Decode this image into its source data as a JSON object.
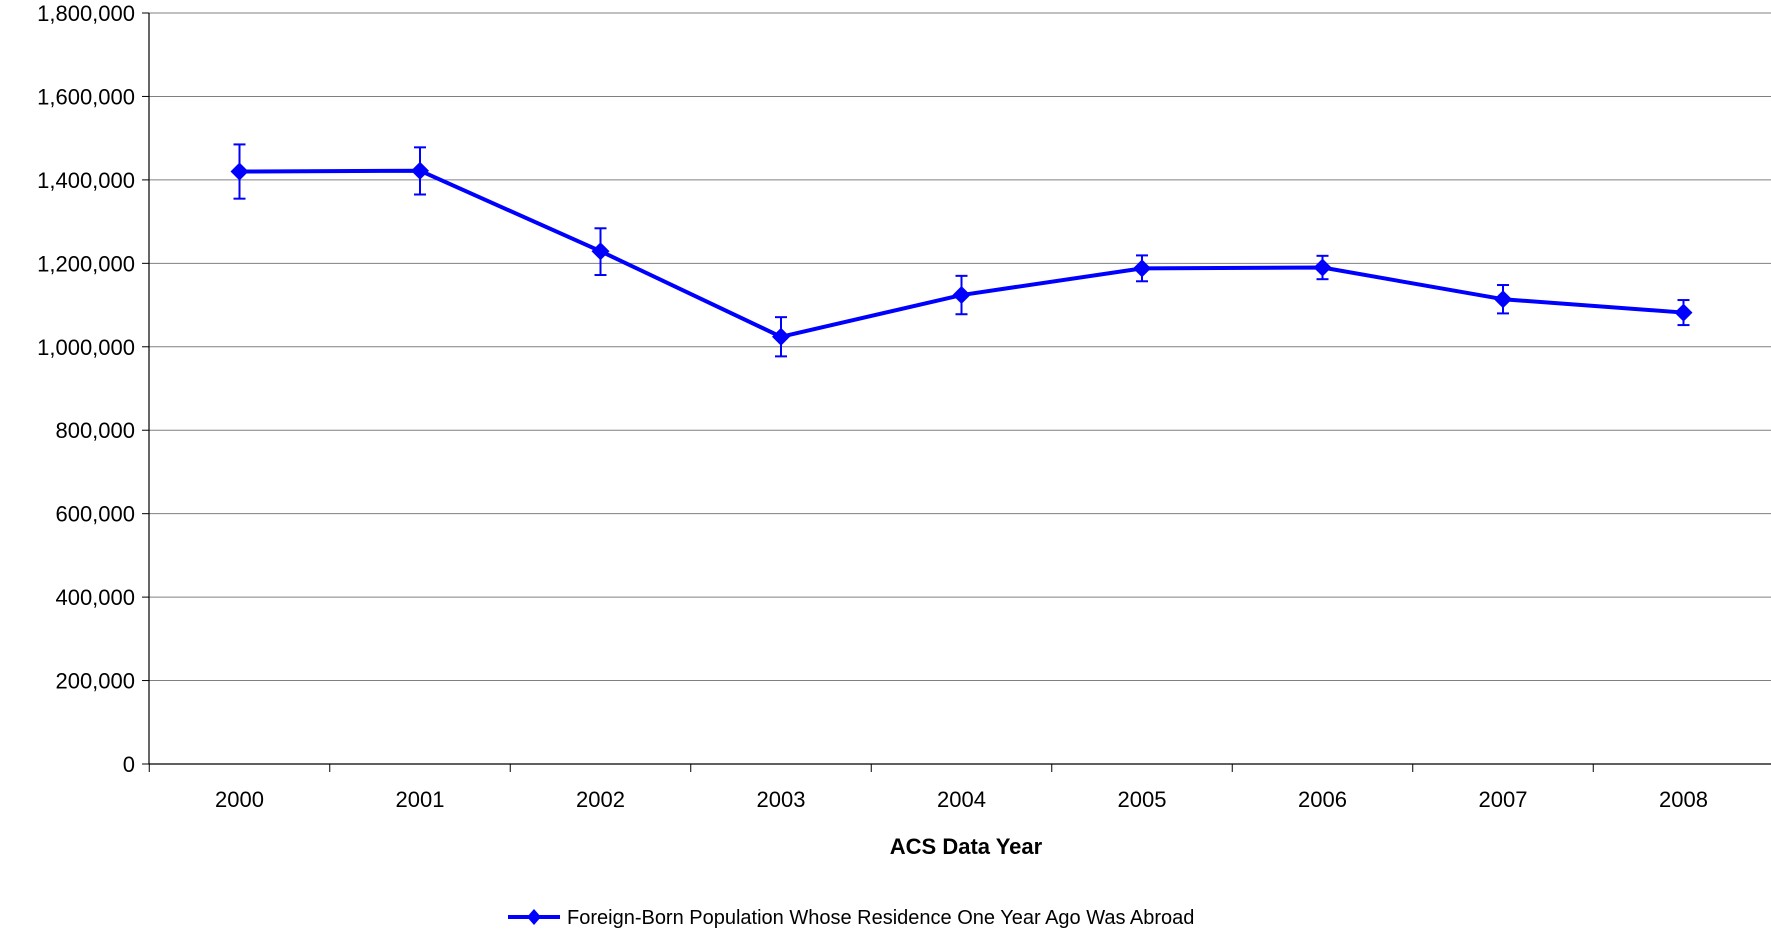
{
  "chart_data": {
    "type": "line",
    "title": "",
    "xlabel": "ACS Data Year",
    "ylabel": "",
    "categories": [
      "2000",
      "2001",
      "2002",
      "2003",
      "2004",
      "2005",
      "2006",
      "2007",
      "2008"
    ],
    "y_ticks": [
      "0",
      "200,000",
      "400,000",
      "600,000",
      "800,000",
      "1,000,000",
      "1,200,000",
      "1,400,000",
      "1,600,000",
      "1,800,000"
    ],
    "ylim": [
      0,
      1800000
    ],
    "grid": true,
    "legend_position": "bottom-center",
    "series": [
      {
        "name": "Foreign-Born Population Whose Residence One Year Ago Was Abroad",
        "color": "#0000FF",
        "marker": "diamond",
        "values": [
          1420000,
          1422000,
          1229000,
          1024000,
          1124000,
          1188000,
          1190000,
          1114000,
          1082000
        ],
        "error_low": [
          1355000,
          1365000,
          1172000,
          977000,
          1078000,
          1157000,
          1162000,
          1080000,
          1052000
        ],
        "error_high": [
          1485000,
          1478000,
          1284000,
          1071000,
          1170000,
          1219000,
          1218000,
          1148000,
          1112000
        ]
      }
    ]
  }
}
